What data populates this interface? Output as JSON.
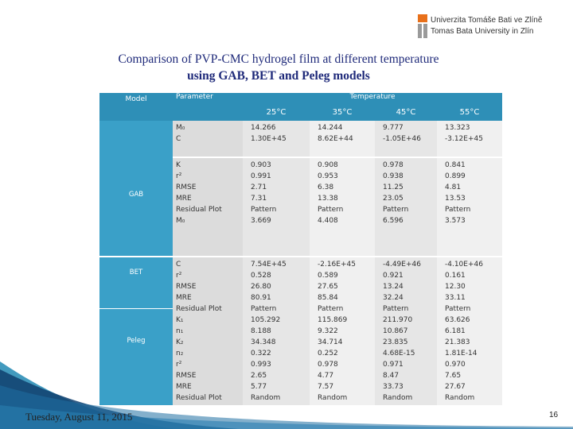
{
  "logo": {
    "line1": "Univerzita Tomáše Bati ve Zlíně",
    "line2": "Tomas Bata University in Zlín",
    "accent_color": "#e8701a"
  },
  "title": {
    "line1": "Comparison of PVP-CMC hydrogel film at different temperature",
    "line2": "using GAB, BET and Peleg models"
  },
  "table": {
    "header": {
      "model": "Model",
      "parameter": "Parameter",
      "temperature": "Temperature",
      "temps": [
        "25°C",
        "35°C",
        "45°C",
        "55°C"
      ]
    },
    "models": [
      "GAB",
      "BET",
      "Peleg"
    ],
    "groups": [
      {
        "params": [
          "M₀",
          "C"
        ],
        "values": [
          [
            "14.266",
            "1.30E+45"
          ],
          [
            "14.244",
            "8.62E+44"
          ],
          [
            "9.777",
            "-1.05E+46"
          ],
          [
            "13.323",
            "-3.12E+45"
          ]
        ]
      },
      {
        "params": [
          "K",
          "r²",
          "RMSE",
          "MRE",
          "Residual Plot",
          "M₀"
        ],
        "values": [
          [
            "0.903",
            "0.991",
            "2.71",
            "7.31",
            "Pattern",
            "3.669"
          ],
          [
            "0.908",
            "0.953",
            "6.38",
            "13.38",
            "Pattern",
            "4.408"
          ],
          [
            "0.978",
            "0.938",
            "11.25",
            "23.05",
            "Pattern",
            "6.596"
          ],
          [
            "0.841",
            "0.899",
            "4.81",
            "13.53",
            "Pattern",
            "3.573"
          ]
        ]
      },
      {
        "params": [
          "C",
          "r²",
          "RMSE",
          "MRE",
          "Residual Plot",
          "K₁",
          "n₁",
          "K₂",
          "n₂",
          "r²",
          "RMSE",
          "MRE",
          "Residual Plot"
        ],
        "values": [
          [
            "7.54E+45",
            "0.528",
            "26.80",
            "80.91",
            "Pattern",
            "105.292",
            "8.188",
            "34.348",
            "0.322",
            "0.993",
            "2.65",
            "5.77",
            "Random"
          ],
          [
            "-2.16E+45",
            "0.589",
            "27.65",
            "85.84",
            "Pattern",
            "115.869",
            "9.322",
            "34.714",
            "0.252",
            "0.978",
            "4.77",
            "7.57",
            "Random"
          ],
          [
            "-4.49E+46",
            "0.921",
            "13.24",
            "32.24",
            "Pattern",
            "211.970",
            "10.867",
            "23.835",
            "4.68E-15",
            "0.971",
            "8.47",
            "33.73",
            "Random"
          ],
          [
            "-4.10E+46",
            "0.161",
            "12.30",
            "33.11",
            "Pattern",
            "63.626",
            "6.181",
            "21.383",
            "1.81E-14",
            "0.970",
            "7.65",
            "27.67",
            "Random"
          ]
        ]
      }
    ]
  },
  "footer": {
    "date": "Tuesday, August 11, 2015",
    "page": "16"
  }
}
